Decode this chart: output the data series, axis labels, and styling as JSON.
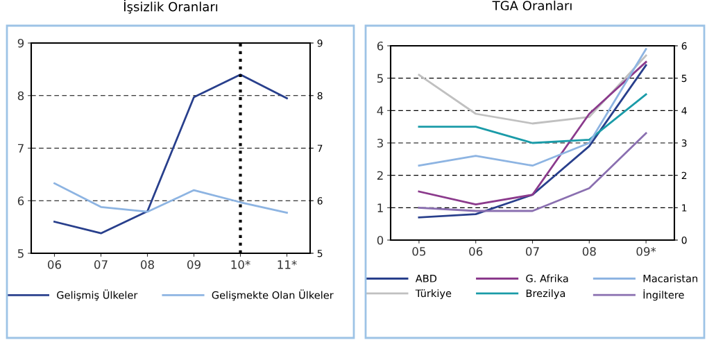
{
  "chart_data": [
    {
      "type": "line",
      "title": "İşsizlik Oranları",
      "categories": [
        "06",
        "07",
        "08",
        "09",
        "10*",
        "11*"
      ],
      "series": [
        {
          "name": "Gelişmiş Ülkeler",
          "color": "#283f8c",
          "values": [
            5.6,
            5.38,
            5.8,
            7.97,
            8.4,
            7.95
          ]
        },
        {
          "name": "Gelişmekte Olan Ülkeler",
          "color": "#8db4e2",
          "values": [
            6.33,
            5.88,
            5.79,
            6.2,
            5.97,
            5.77
          ]
        }
      ],
      "ylim": [
        5,
        9
      ],
      "yticks": [
        5,
        6,
        7,
        8,
        9
      ],
      "y2lim": [
        5,
        9
      ],
      "y2ticks": [
        5,
        6,
        7,
        8,
        9
      ],
      "grid": "y",
      "legend": "bottom",
      "ref_lines": [
        {
          "axis": "x",
          "value": "10*",
          "color": "#000000",
          "line_style": "dotted"
        }
      ]
    },
    {
      "type": "line",
      "title": "TGA Oranları",
      "categories": [
        "05",
        "06",
        "07",
        "08",
        "09*"
      ],
      "series": [
        {
          "name": "ABD",
          "color": "#283f8c",
          "values": [
            0.7,
            0.8,
            1.4,
            2.9,
            5.4
          ]
        },
        {
          "name": "Türkiye",
          "color": "#c0c0c0",
          "values": [
            5.1,
            3.9,
            3.6,
            3.8,
            5.7
          ]
        },
        {
          "name": "G. Afrika",
          "color": "#8b3a8c",
          "values": [
            1.5,
            1.1,
            1.4,
            3.9,
            5.5
          ]
        },
        {
          "name": "Brezilya",
          "color": "#1a9ba8",
          "values": [
            3.5,
            3.5,
            3.0,
            3.1,
            4.5
          ]
        },
        {
          "name": "Macaristan",
          "color": "#8db4e2",
          "values": [
            2.3,
            2.6,
            2.3,
            3.0,
            5.9
          ]
        },
        {
          "name": "İngiltere",
          "color": "#8a6fb0",
          "values": [
            1.0,
            0.9,
            0.9,
            1.6,
            3.3
          ]
        }
      ],
      "ylim": [
        0,
        6
      ],
      "yticks": [
        0,
        1,
        2,
        3,
        4,
        5,
        6
      ],
      "y2lim": [
        0,
        6
      ],
      "y2ticks": [
        0,
        1,
        2,
        3,
        4,
        5,
        6
      ],
      "grid": "y",
      "legend": "bottom"
    }
  ]
}
